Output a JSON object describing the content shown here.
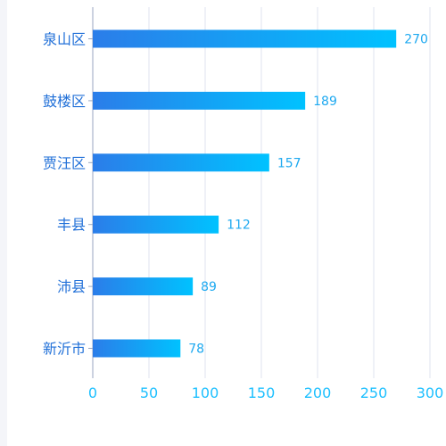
{
  "chart_data": {
    "type": "bar",
    "orientation": "horizontal",
    "categories": [
      "泉山区",
      "鼓楼区",
      "贾汪区",
      "丰县",
      "沛县",
      "新沂市"
    ],
    "values": [
      270,
      189,
      157,
      112,
      89,
      78
    ],
    "xlim": [
      0,
      300
    ],
    "xticks": [
      0,
      50,
      100,
      150,
      200,
      250,
      300
    ],
    "grid": "vertical",
    "data_labels": true,
    "colors": {
      "bar_start": "#2b7de9",
      "bar_end": "#00c2ff",
      "category_label": "#2170d8",
      "value_label": "#1ea9f0",
      "tick_label": "#1ec0ff",
      "grid": "#dfe3ef",
      "axis": "#9aa6c0"
    }
  }
}
